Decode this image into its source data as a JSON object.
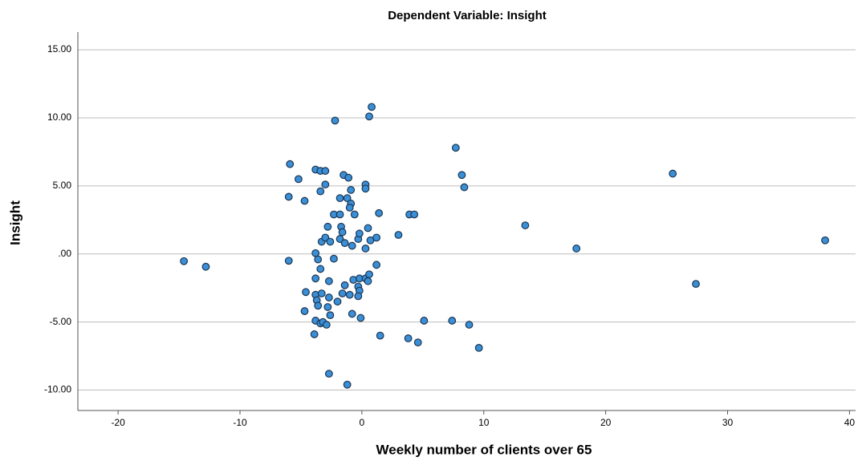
{
  "chart_data": {
    "type": "scatter",
    "title": "Dependent Variable: Insight",
    "x_label": "Weekly number of clients over 65",
    "y_label": "Insight",
    "color": "#3a8fd6",
    "edge_color": "#1b3552",
    "grid": true,
    "xlim": [
      -23.3,
      40.5
    ],
    "ylim": [
      -11.5,
      16.3
    ],
    "xticks": [
      -20,
      -10,
      0,
      10,
      20,
      30,
      40
    ],
    "yticks": [
      {
        "value": 15,
        "label": "15.00"
      },
      {
        "value": 10,
        "label": "10.00"
      },
      {
        "value": 5,
        "label": "5.00"
      },
      {
        "value": 0,
        "label": ".00"
      },
      {
        "value": -5,
        "label": "-5.00"
      },
      {
        "value": -10,
        "label": "-10.00"
      }
    ],
    "x": [
      -14.6,
      -12.8,
      -5.9,
      -5.2,
      -6.0,
      -4.7,
      -6.0,
      -3.8,
      -3.4,
      -3.0,
      -3.0,
      -3.4,
      -1.5,
      -1.1,
      -0.9,
      -1.8,
      -1.2,
      -0.9,
      -1.0,
      -0.6,
      -2.3,
      -1.8,
      0.3,
      0.3,
      -2.2,
      0.6,
      0.8,
      1.4,
      0.5,
      3.0,
      3.9,
      4.3,
      7.7,
      8.2,
      8.4,
      13.4,
      17.6,
      25.5,
      27.4,
      38.0,
      -2.8,
      -1.7,
      -1.6,
      -3.3,
      -3.0,
      -2.6,
      -1.8,
      -1.4,
      -0.8,
      -0.3,
      -0.2,
      0.3,
      0.7,
      1.2,
      -3.8,
      -3.6,
      -3.4,
      -2.3,
      1.2,
      -3.8,
      -2.7,
      -4.6,
      -1.4,
      -0.7,
      -0.2,
      0.3,
      0.6,
      0.5,
      -0.3,
      -0.2,
      -0.3,
      -3.8,
      -3.3,
      -2.7,
      -1.6,
      -1.0,
      -2.0,
      -3.7,
      -3.6,
      -2.8,
      -4.7,
      -2.6,
      -0.8,
      -0.1,
      -3.8,
      -3.4,
      -3.2,
      -2.9,
      -3.9,
      1.5,
      3.8,
      4.6,
      5.1,
      7.4,
      8.8,
      9.6,
      -2.7,
      -1.2
    ],
    "values": [
      -0.53,
      -0.94,
      6.6,
      5.5,
      4.2,
      3.9,
      -0.5,
      6.2,
      6.1,
      6.1,
      5.1,
      4.6,
      5.8,
      5.6,
      4.7,
      4.1,
      4.1,
      3.7,
      3.4,
      2.9,
      2.9,
      2.9,
      5.1,
      4.8,
      9.8,
      10.1,
      10.8,
      3.0,
      1.9,
      1.4,
      2.9,
      2.9,
      7.8,
      5.8,
      4.9,
      2.1,
      0.4,
      5.9,
      -2.2,
      1.0,
      2.0,
      2.0,
      1.6,
      0.9,
      1.2,
      0.9,
      1.1,
      0.8,
      0.6,
      1.1,
      1.5,
      0.4,
      1.0,
      1.2,
      0.06,
      -0.4,
      -1.1,
      -0.35,
      -0.8,
      -1.8,
      -2.0,
      -2.8,
      -2.3,
      -1.9,
      -1.8,
      -1.8,
      -1.5,
      -2.0,
      -2.4,
      -2.7,
      -3.1,
      -3.0,
      -2.9,
      -3.2,
      -2.9,
      -3.0,
      -3.5,
      -3.4,
      -3.8,
      -3.9,
      -4.2,
      -4.5,
      -4.4,
      -4.7,
      -4.9,
      -5.1,
      -5.0,
      -5.2,
      -5.9,
      -6.0,
      -6.2,
      -6.5,
      -4.9,
      -4.9,
      -5.2,
      -6.9,
      -8.8,
      -9.6
    ]
  }
}
